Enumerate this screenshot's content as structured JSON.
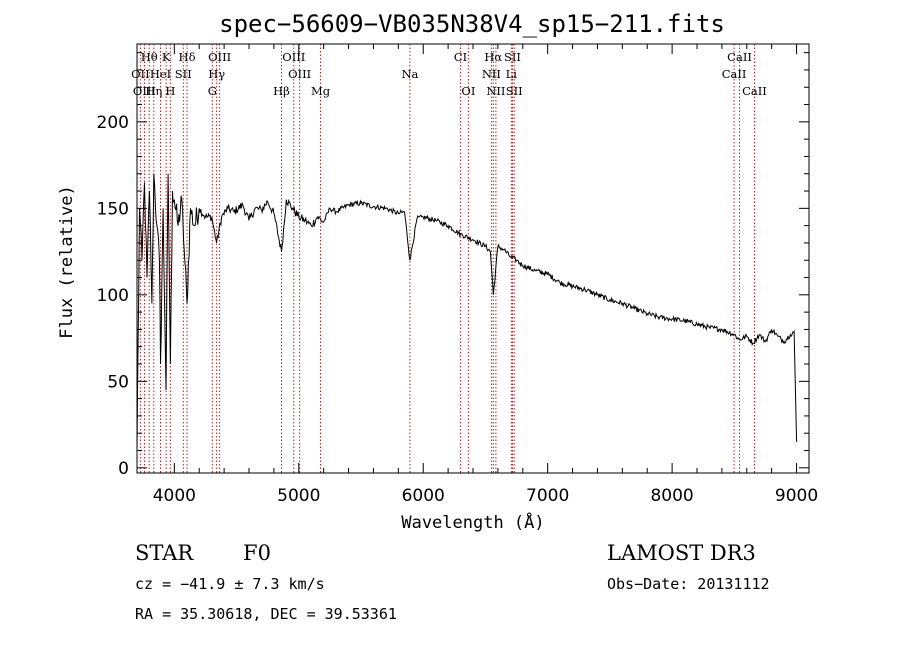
{
  "chart_data": {
    "type": "line",
    "title": "spec−56609−VB035N38V4_sp15−211.fits",
    "xlabel": "Wavelength (Å)",
    "ylabel": "Flux (relative)",
    "xlim": [
      3700,
      9100
    ],
    "ylim": [
      -3,
      245
    ],
    "x_ticks": [
      4000,
      5000,
      6000,
      7000,
      8000,
      9000
    ],
    "y_ticks": [
      0,
      50,
      100,
      150,
      200
    ],
    "line_color": "#000000",
    "marker_color": "#b22222",
    "series": [
      {
        "name": "spectrum",
        "x": [
          3700,
          3720,
          3740,
          3760,
          3780,
          3800,
          3820,
          3835,
          3860,
          3880,
          3889,
          3910,
          3933,
          3950,
          3968,
          3985,
          4000,
          4030,
          4060,
          4080,
          4102,
          4130,
          4160,
          4200,
          4250,
          4300,
          4340,
          4380,
          4430,
          4480,
          4550,
          4600,
          4650,
          4700,
          4750,
          4800,
          4861,
          4900,
          4950,
          5000,
          5050,
          5100,
          5150,
          5200,
          5250,
          5300,
          5400,
          5500,
          5600,
          5700,
          5800,
          5850,
          5893,
          5950,
          6000,
          6100,
          6200,
          6300,
          6400,
          6500,
          6540,
          6563,
          6600,
          6650,
          6700,
          6750,
          6800,
          6900,
          7000,
          7100,
          7200,
          7300,
          7400,
          7500,
          7600,
          7700,
          7800,
          7900,
          8000,
          8100,
          8200,
          8300,
          8400,
          8500,
          8540,
          8600,
          8650,
          8700,
          8750,
          8800,
          8850,
          8900,
          8950,
          8980,
          9000
        ],
        "y": [
          10,
          150,
          120,
          165,
          110,
          160,
          95,
          170,
          140,
          120,
          60,
          150,
          45,
          170,
          60,
          160,
          155,
          140,
          155,
          125,
          95,
          150,
          140,
          150,
          145,
          145,
          130,
          145,
          150,
          148,
          152,
          143,
          150,
          149,
          154,
          147,
          125,
          155,
          150,
          145,
          143,
          140,
          145,
          142,
          150,
          148,
          152,
          153,
          151,
          150,
          147,
          148,
          120,
          144,
          145,
          143,
          140,
          135,
          132,
          128,
          125,
          100,
          128,
          126,
          122,
          120,
          117,
          114,
          112,
          107,
          105,
          103,
          100,
          97,
          95,
          92,
          89,
          87,
          86,
          85,
          83,
          81,
          80,
          77,
          74,
          76,
          72,
          77,
          73,
          80,
          76,
          73,
          77,
          79,
          15
        ]
      }
    ],
    "lines": [
      {
        "name": "Hθ",
        "wavelength": 3798,
        "row": 1
      },
      {
        "name": "K",
        "wavelength": 3934,
        "row": 1
      },
      {
        "name": "Hδ",
        "wavelength": 4102,
        "row": 1
      },
      {
        "name": "OIII",
        "wavelength": 4364,
        "row": 1
      },
      {
        "name": "OIII",
        "wavelength": 4960,
        "row": 1
      },
      {
        "name": "CI",
        "wavelength": 6300,
        "row": 1
      },
      {
        "name": "Hα",
        "wavelength": 6563,
        "row": 1
      },
      {
        "name": "SII",
        "wavelength": 6717,
        "row": 1
      },
      {
        "name": "CaII",
        "wavelength": 8542,
        "row": 1
      },
      {
        "name": "OII",
        "wavelength": 3727,
        "row": 2
      },
      {
        "name": "HeI",
        "wavelength": 3889,
        "row": 2
      },
      {
        "name": "SII",
        "wavelength": 4072,
        "row": 2
      },
      {
        "name": "Hγ",
        "wavelength": 4340,
        "row": 2
      },
      {
        "name": "OIII",
        "wavelength": 5007,
        "row": 2
      },
      {
        "name": "Na",
        "wavelength": 5893,
        "row": 2
      },
      {
        "name": "NII",
        "wavelength": 6548,
        "row": 2
      },
      {
        "name": "Li",
        "wavelength": 6708,
        "row": 2
      },
      {
        "name": "CaII",
        "wavelength": 8498,
        "row": 2
      },
      {
        "name": "OIII",
        "wavelength": 3760,
        "row": 3
      },
      {
        "name": "Hη",
        "wavelength": 3835,
        "row": 3
      },
      {
        "name": "H",
        "wavelength": 3968,
        "row": 3
      },
      {
        "name": "G",
        "wavelength": 4305,
        "row": 3
      },
      {
        "name": "Hβ",
        "wavelength": 4861,
        "row": 3
      },
      {
        "name": "Mg",
        "wavelength": 5175,
        "row": 3
      },
      {
        "name": "OI",
        "wavelength": 6363,
        "row": 3
      },
      {
        "name": "NII",
        "wavelength": 6584,
        "row": 3
      },
      {
        "name": "SII",
        "wavelength": 6731,
        "row": 3
      },
      {
        "name": "CaII",
        "wavelength": 8662,
        "row": 3
      }
    ]
  },
  "info": {
    "class": "STAR",
    "subclass": "F0",
    "survey": "LAMOST DR3",
    "cz": "cz = −41.9 ± 7.3 km/s",
    "obs_date": "Obs−Date: 20131112",
    "coords": "RA =  35.30618, DEC =  39.53361"
  }
}
